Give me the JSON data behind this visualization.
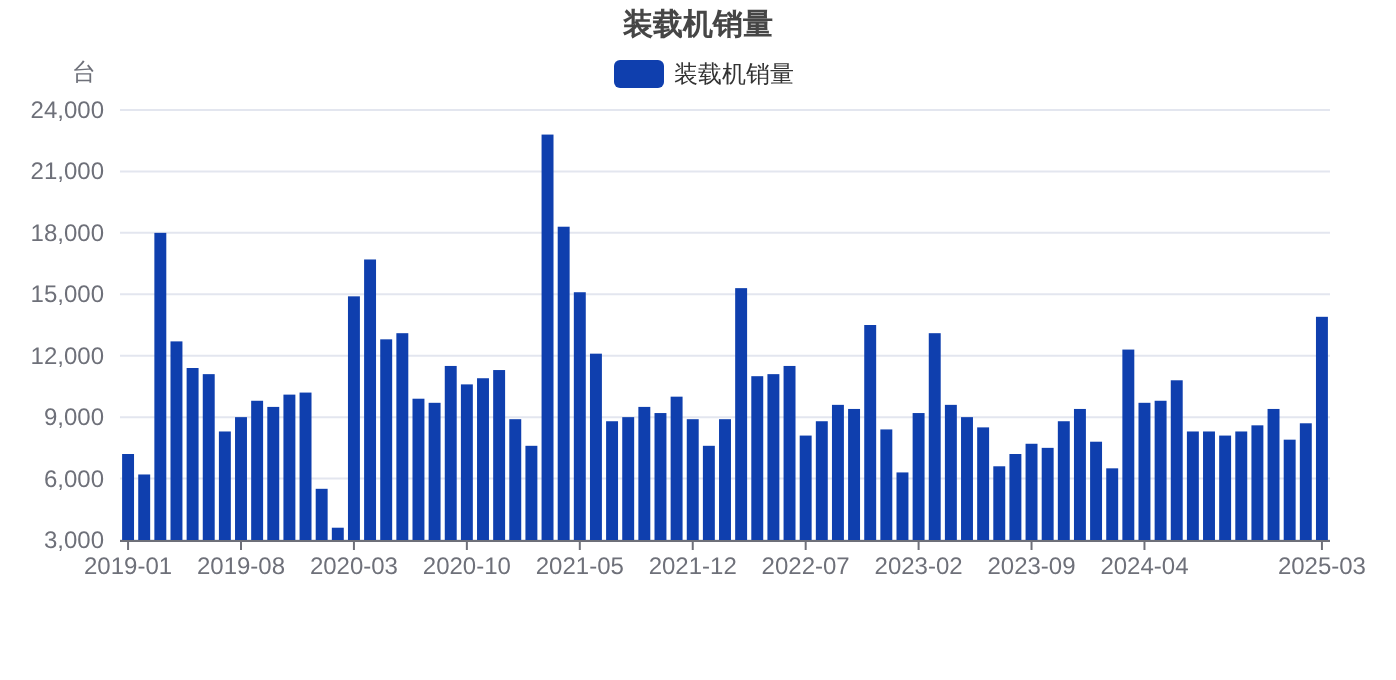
{
  "chart_data": {
    "type": "bar",
    "title": "装载机销量",
    "ylabel": "台",
    "categories": [
      "2019-01",
      null,
      null,
      null,
      null,
      null,
      null,
      "2019-08",
      null,
      null,
      null,
      null,
      null,
      null,
      "2020-03",
      null,
      null,
      null,
      null,
      null,
      null,
      "2020-10",
      null,
      null,
      null,
      null,
      null,
      null,
      "2021-05",
      null,
      null,
      null,
      null,
      null,
      null,
      "2021-12",
      null,
      null,
      null,
      null,
      null,
      null,
      "2022-07",
      null,
      null,
      null,
      null,
      null,
      null,
      "2023-02",
      null,
      null,
      null,
      null,
      null,
      null,
      "2023-09",
      null,
      null,
      null,
      null,
      null,
      null,
      "2024-04",
      null,
      null,
      null,
      null,
      null,
      null,
      null,
      null,
      null,
      null,
      "2025-03"
    ],
    "series": [
      {
        "name": "装载机销量",
        "color": "#0f3fae",
        "values": [
          7200,
          6200,
          18000,
          12700,
          11400,
          11100,
          8300,
          9000,
          9800,
          9500,
          10100,
          10200,
          5500,
          3600,
          14900,
          16700,
          12800,
          13100,
          9900,
          9700,
          11500,
          10600,
          10900,
          11300,
          8900,
          7600,
          22800,
          18300,
          15100,
          12100,
          8800,
          9000,
          9500,
          9200,
          10000,
          8900,
          7600,
          8900,
          15300,
          11000,
          11100,
          11500,
          8100,
          8800,
          9600,
          9400,
          13500,
          8400,
          6300,
          9200,
          13100,
          9600,
          9000,
          8500,
          6600,
          7200,
          7700,
          7500,
          8800,
          9400,
          7800,
          6500,
          12300,
          9700,
          9800,
          10800,
          8300,
          8300,
          8100,
          8300,
          8600,
          9400,
          7900,
          8700,
          13900
        ]
      }
    ],
    "ylim": [
      3000,
      24000
    ],
    "yticks": [
      {
        "value": 3000,
        "label": "3,000"
      },
      {
        "value": 6000,
        "label": "6,000"
      },
      {
        "value": 9000,
        "label": "9,000"
      },
      {
        "value": 12000,
        "label": "12,000"
      },
      {
        "value": 15000,
        "label": "15,000"
      },
      {
        "value": 18000,
        "label": "18,000"
      },
      {
        "value": 21000,
        "label": "21,000"
      },
      {
        "value": 24000,
        "label": "24,000"
      }
    ],
    "grid": "y",
    "legend": "top"
  }
}
